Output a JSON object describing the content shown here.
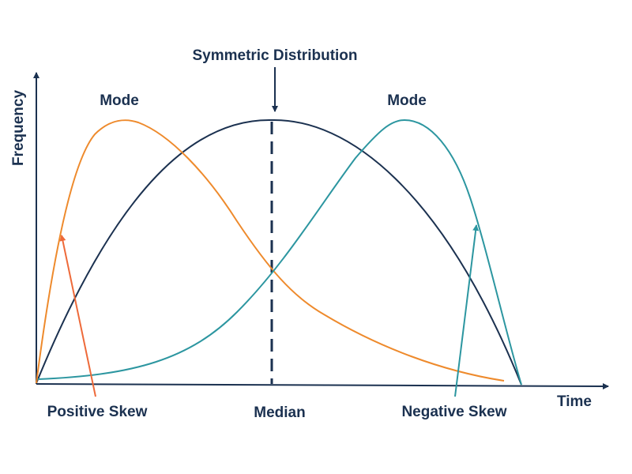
{
  "labels": {
    "y_axis": "Frequency",
    "x_axis": "Time",
    "title_symmetric": "Symmetric Distribution",
    "mode_left": "Mode",
    "mode_right": "Mode",
    "median": "Median",
    "positive_skew": "Positive Skew",
    "negative_skew": "Negative Skew"
  },
  "colors": {
    "text": "#1b3150",
    "axis": "#1b3150",
    "symmetric_curve": "#1b3150",
    "positive_curve": "#ee8a2c",
    "negative_curve": "#2c96a0",
    "positive_arrow": "#ee6a3a",
    "negative_arrow": "#2c96a0",
    "median_line": "#1b3150"
  }
}
